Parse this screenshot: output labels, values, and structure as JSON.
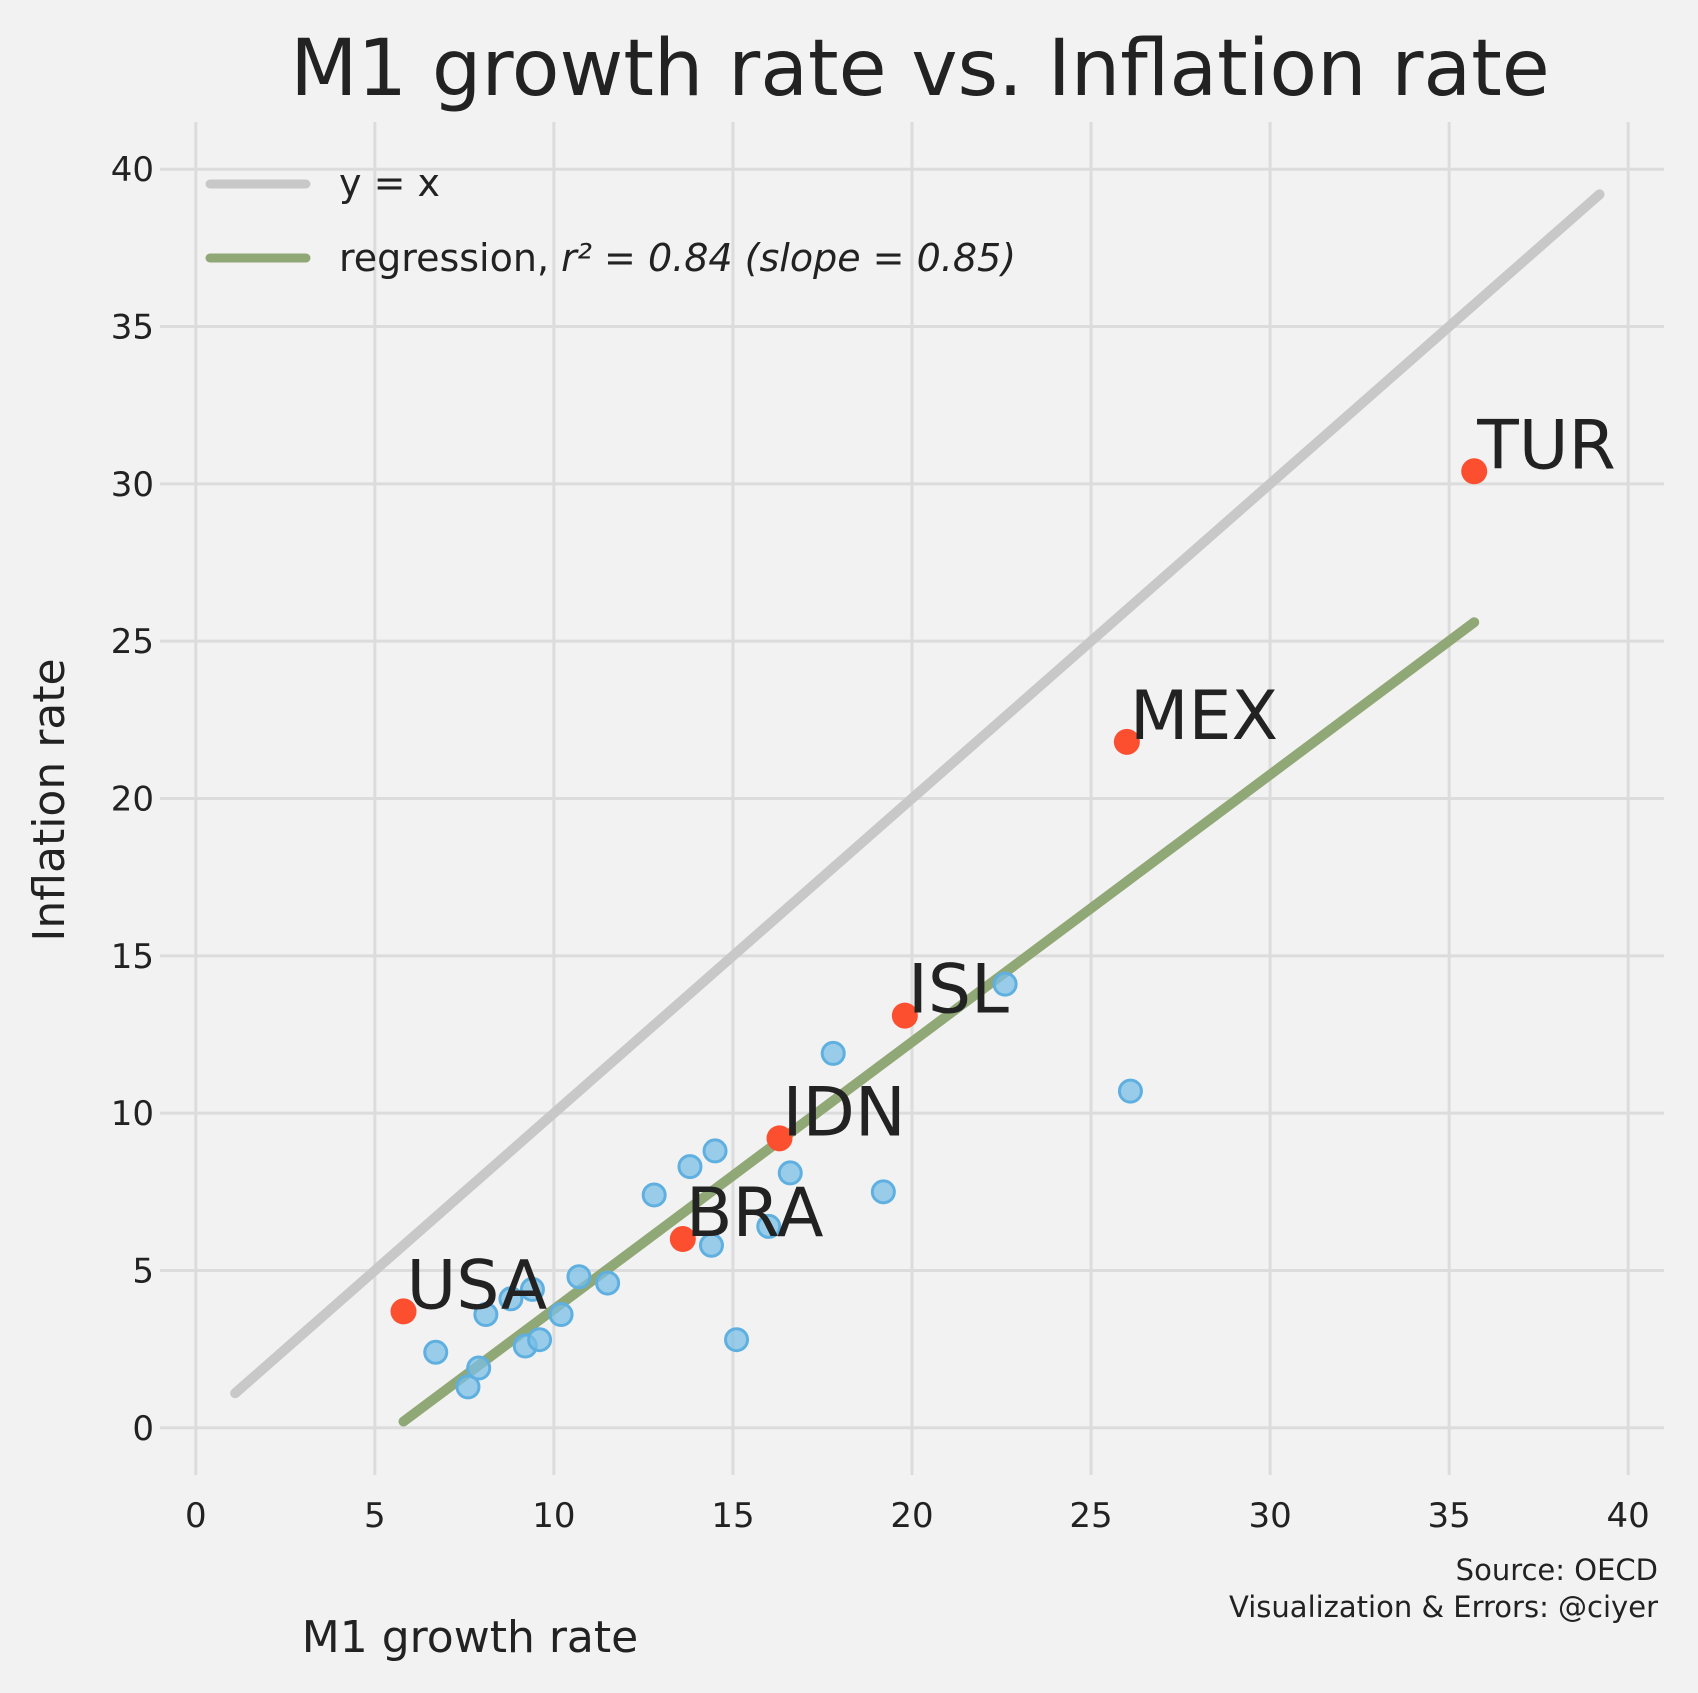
{
  "chart_data": {
    "type": "scatter",
    "title": "M1 growth rate vs. Inflation rate",
    "xlabel": "M1 growth rate",
    "ylabel": "Inflation rate",
    "xlim": [
      -1,
      41
    ],
    "ylim": [
      -1.5,
      41.5
    ],
    "xticks": [
      0,
      5,
      10,
      15,
      20,
      25,
      30,
      35,
      40
    ],
    "yticks": [
      0,
      5,
      10,
      15,
      20,
      25,
      30,
      35,
      40
    ],
    "grid": true,
    "legend_position": "top-left",
    "colors": {
      "background": "#f2f2f2",
      "grid": "#dcdcdc",
      "identity_line": "#c8c8c8",
      "regression_line": "#8fa876",
      "points": "#7bbfe6",
      "points_edge": "#5fb0e0",
      "highlight": "#fc4f30"
    },
    "series": [
      {
        "kind": "line",
        "legend": "y = x",
        "points": [
          [
            1.1,
            1.1
          ],
          [
            39.2,
            39.2
          ]
        ]
      },
      {
        "kind": "line",
        "legend_prefix": "regression, ",
        "legend_math": "r² = 0.84 (slope = 0.85)",
        "points": [
          [
            5.8,
            0.2
          ],
          [
            35.7,
            25.6
          ]
        ]
      },
      {
        "kind": "scatter",
        "points": [
          [
            6.7,
            2.4
          ],
          [
            7.6,
            1.3
          ],
          [
            7.9,
            1.9
          ],
          [
            8.1,
            3.6
          ],
          [
            8.8,
            4.1
          ],
          [
            9.2,
            2.6
          ],
          [
            9.4,
            4.4
          ],
          [
            9.6,
            2.8
          ],
          [
            10.2,
            3.6
          ],
          [
            10.7,
            4.8
          ],
          [
            11.5,
            4.6
          ],
          [
            12.8,
            7.4
          ],
          [
            13.8,
            8.3
          ],
          [
            14.4,
            5.8
          ],
          [
            14.5,
            8.8
          ],
          [
            15.1,
            2.8
          ],
          [
            16.0,
            6.4
          ],
          [
            16.6,
            8.1
          ],
          [
            17.8,
            11.9
          ],
          [
            19.2,
            7.5
          ],
          [
            22.6,
            14.1
          ],
          [
            26.1,
            10.7
          ]
        ]
      },
      {
        "kind": "highlight",
        "points": [
          {
            "label": "USA",
            "x": 5.8,
            "y": 3.7
          },
          {
            "label": "BRA",
            "x": 13.6,
            "y": 6.0
          },
          {
            "label": "IDN",
            "x": 16.3,
            "y": 9.2
          },
          {
            "label": "ISL",
            "x": 19.8,
            "y": 13.1
          },
          {
            "label": "MEX",
            "x": 26.0,
            "y": 21.8
          },
          {
            "label": "TUR",
            "x": 35.7,
            "y": 30.4
          }
        ]
      }
    ],
    "source": [
      "Source: OECD",
      "Visualization & Errors: @ciyer"
    ]
  }
}
